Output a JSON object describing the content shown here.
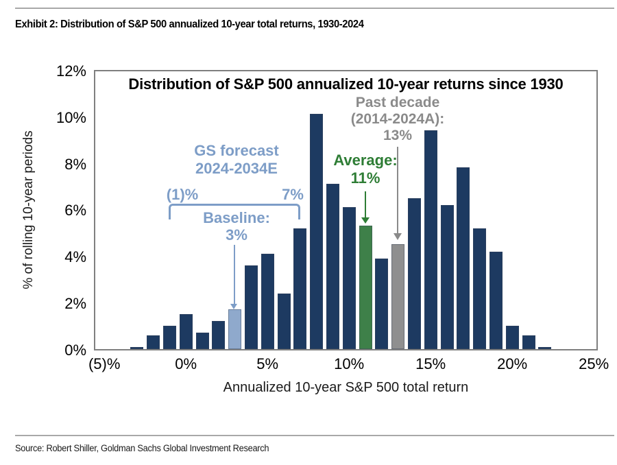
{
  "header": {
    "exhibit_title": "Exhibit 2: Distribution of S&P 500 annualized 10-year total returns, 1930-2024"
  },
  "footer": {
    "source": "Source: Robert Shiller, Goldman Sachs Global Investment Research"
  },
  "chart": {
    "title": "Distribution of S&P 500 annualized 10-year returns since 1930",
    "y_axis_title": "% of rolling 10-year periods",
    "x_axis_title": "Annualized 10-year S&P 500 total return",
    "y_ticks": [
      {
        "label": "12%",
        "value": 12
      },
      {
        "label": "10%",
        "value": 10
      },
      {
        "label": "8%",
        "value": 8
      },
      {
        "label": "6%",
        "value": 6
      },
      {
        "label": "4%",
        "value": 4
      },
      {
        "label": "2%",
        "value": 2
      },
      {
        "label": "0%",
        "value": 0
      }
    ],
    "x_ticks": [
      {
        "label": "(5)%",
        "value": -5
      },
      {
        "label": "0%",
        "value": 0
      },
      {
        "label": "5%",
        "value": 5
      },
      {
        "label": "10%",
        "value": 10
      },
      {
        "label": "15%",
        "value": 15
      },
      {
        "label": "20%",
        "value": 20
      },
      {
        "label": "25%",
        "value": 25
      }
    ],
    "annotations": {
      "gs_forecast": {
        "line1": "GS forecast",
        "line2": "2024-2034E",
        "range_low": "(1)%",
        "range_high": "7%",
        "baseline_label": "Baseline:",
        "baseline_value": "3%"
      },
      "average": {
        "label": "Average:",
        "value": "11%"
      },
      "past_decade": {
        "line1": "Past decade",
        "line2": "(2014-2024A):",
        "line3": "13%"
      }
    },
    "colors": {
      "navy": "#1d3a61",
      "light_blue": "#8fa9cc",
      "green_bar": "#3e8049",
      "gray_bar": "#8f8f8f",
      "steel_blue_text": "#7d9dc7",
      "green_text": "#2e7d35",
      "gray_text": "#8a8a8a",
      "axis_border": "#7f7f7f"
    }
  },
  "chart_data": {
    "type": "bar",
    "title": "Distribution of S&P 500 annualized 10-year returns since 1930",
    "xlabel": "Annualized 10-year S&P 500 total return",
    "ylabel": "% of rolling 10-year periods",
    "xlim": [
      -5,
      25
    ],
    "ylim": [
      0,
      12
    ],
    "grid": false,
    "legend": "none",
    "x_returns_percent": [
      -3,
      -2,
      -1,
      0,
      1,
      2,
      3,
      4,
      5,
      6,
      7,
      8,
      9,
      10,
      11,
      12,
      13,
      14,
      15,
      16,
      17,
      18,
      19,
      20,
      21,
      22
    ],
    "values_percent": [
      0.1,
      0.6,
      1.0,
      1.5,
      0.7,
      1.2,
      1.7,
      3.6,
      4.1,
      2.4,
      5.2,
      10.1,
      7.1,
      6.1,
      5.3,
      3.9,
      4.5,
      6.5,
      9.4,
      6.2,
      7.8,
      5.2,
      4.2,
      1.0,
      0.6,
      0.1
    ],
    "highlighted_bars": {
      "3": {
        "color_key": "light_blue",
        "meaning": "GS forecast baseline: 3%"
      },
      "11": {
        "color_key": "green_bar",
        "meaning": "Average: 11%"
      },
      "13": {
        "color_key": "gray_bar",
        "meaning": "Past decade (2014-2024A): 13%"
      }
    },
    "forecast_range_percent": [
      -1,
      7
    ]
  }
}
